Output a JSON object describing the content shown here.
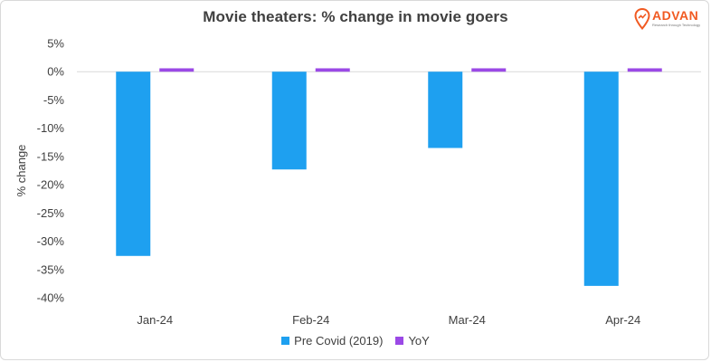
{
  "header": {
    "brand_name": "ADVAN",
    "brand_tagline": "Research through Technology"
  },
  "colors": {
    "pre_covid": "#1ea0f0",
    "yoy": "#9b49e6",
    "brand": "#f15a22",
    "grid": "#d9d9d9",
    "text": "#404040"
  },
  "chart_data": {
    "type": "bar",
    "title": "Movie theaters: % change in movie goers",
    "xlabel": "",
    "ylabel": "% change",
    "categories": [
      "Jan-24",
      "Feb-24",
      "Mar-24",
      "Apr-24"
    ],
    "series": [
      {
        "name": "Pre Covid (2019)",
        "values": [
          -32.6,
          -17.3,
          -13.5,
          -37.9
        ]
      },
      {
        "name": "YoY",
        "values": [
          0.6,
          0.6,
          0.6,
          0.6
        ]
      }
    ],
    "ylim": [
      -40,
      5
    ],
    "yticks": [
      5,
      0,
      -5,
      -10,
      -15,
      -20,
      -25,
      -30,
      -35,
      -40
    ],
    "ytick_labels": [
      "5%",
      "0%",
      "-5%",
      "-10%",
      "-15%",
      "-20%",
      "-25%",
      "-30%",
      "-35%",
      "-40%"
    ],
    "grid": false,
    "legend_position": "bottom"
  }
}
